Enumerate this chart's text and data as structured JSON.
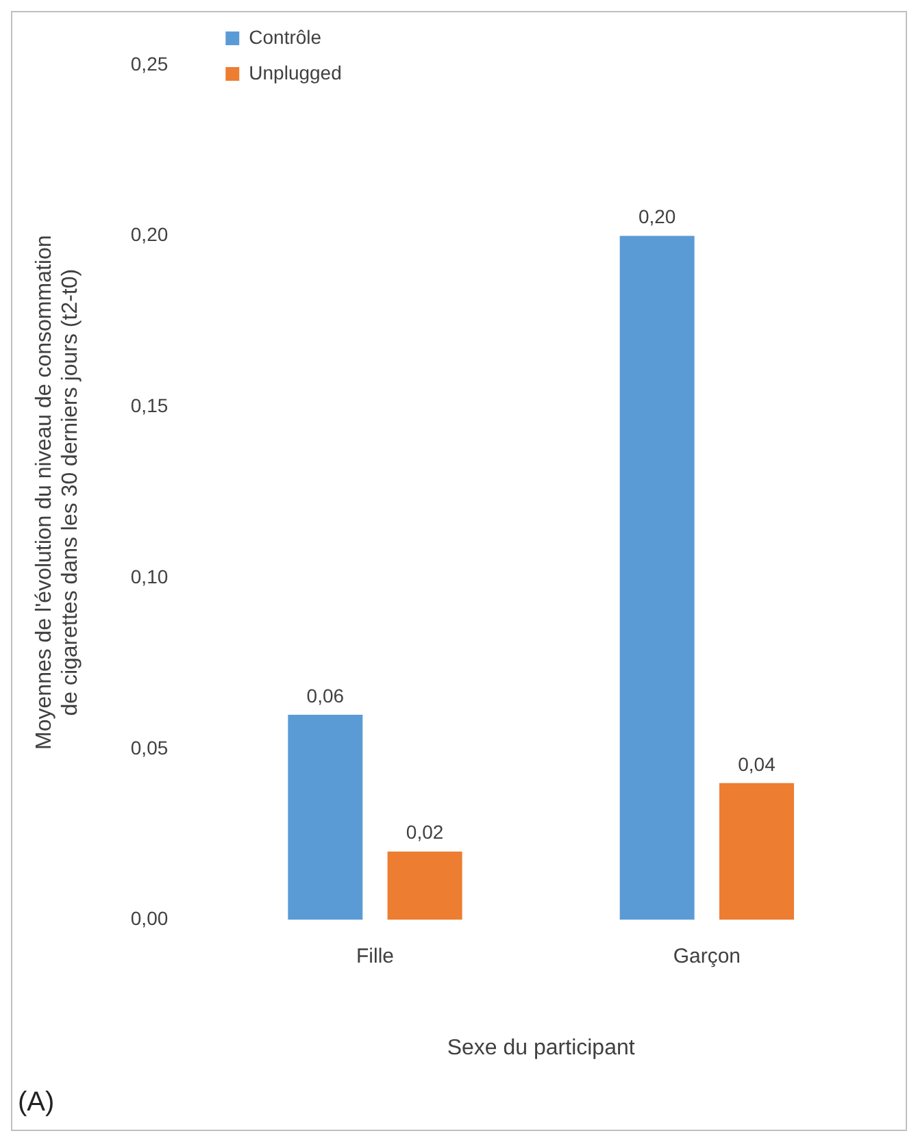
{
  "chart_data": {
    "type": "bar",
    "categories": [
      "Fille",
      "Garçon"
    ],
    "series": [
      {
        "name": "Contrôle",
        "color": "#5b9bd5",
        "values": [
          0.06,
          0.2
        ],
        "value_labels": [
          "0,06",
          "0,20"
        ]
      },
      {
        "name": "Unplugged",
        "color": "#ed7d31",
        "values": [
          0.02,
          0.04
        ],
        "value_labels": [
          "0,02",
          "0,04"
        ]
      }
    ],
    "ylim": [
      0,
      0.25
    ],
    "yticks": [
      {
        "value": 0,
        "label": "0,00"
      },
      {
        "value": 0.05,
        "label": "0,05"
      },
      {
        "value": 0.1,
        "label": "0,10"
      },
      {
        "value": 0.15,
        "label": "0,15"
      },
      {
        "value": 0.2,
        "label": "0,20"
      },
      {
        "value": 0.25,
        "label": "0,25"
      }
    ],
    "xlabel": "Sexe du participant",
    "ylabel": "Moyennes de l'évolution du niveau de consommation de cigarettes dans les 30 derniers jours (t2-t0)",
    "legend": "top left",
    "grid": false,
    "annotations": [
      "(A)"
    ]
  }
}
